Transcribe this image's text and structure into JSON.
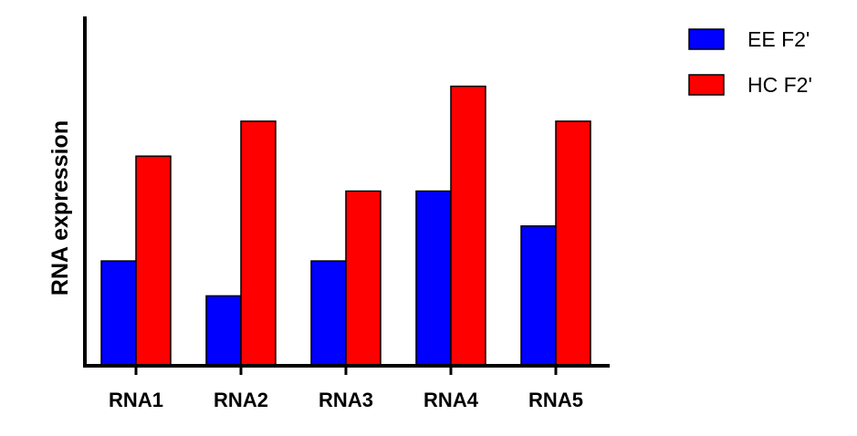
{
  "chart_data": {
    "type": "bar",
    "title": "",
    "xlabel": "",
    "ylabel": "RNA expression",
    "categories": [
      "RNA1",
      "RNA2",
      "RNA3",
      "RNA4",
      "RNA5"
    ],
    "series": [
      {
        "name": "EE F2'",
        "color": "#0000ff",
        "values": [
          3,
          2,
          3,
          5,
          4
        ]
      },
      {
        "name": "HC F2'",
        "color": "#ff0000",
        "values": [
          6,
          7,
          5,
          8,
          7
        ]
      }
    ],
    "ylim": [
      0,
      10
    ],
    "y_ticks_shown": false,
    "grid": false,
    "legend_position": "top-right"
  }
}
